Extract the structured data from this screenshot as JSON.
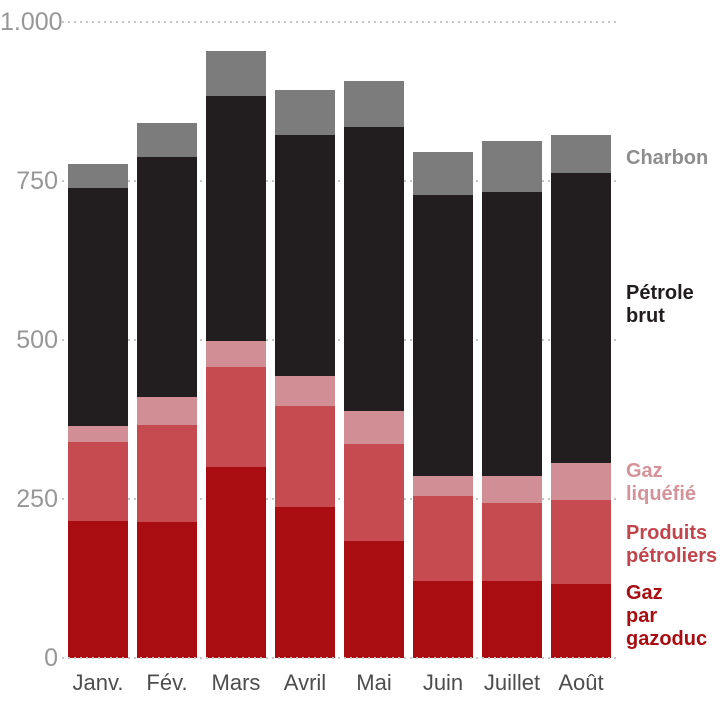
{
  "chart_data": {
    "type": "bar",
    "stacked": true,
    "title": "",
    "xlabel": "",
    "ylabel": "",
    "categories": [
      "Janv.",
      "Fév.",
      "Mars",
      "Avril",
      "Mai",
      "Juin",
      "Juillet",
      "Août"
    ],
    "series": [
      {
        "name": "Gaz par gazoduc",
        "color": "#a90d12",
        "values": [
          215,
          214,
          300,
          237,
          184,
          121,
          121,
          116
        ]
      },
      {
        "name": "Produits pétroliers",
        "color": "#c64b51",
        "values": [
          124,
          152,
          158,
          159,
          152,
          133,
          122,
          132
        ]
      },
      {
        "name": "Gaz liquéfié",
        "color": "#d18e94",
        "values": [
          25,
          45,
          40,
          47,
          52,
          32,
          43,
          58
        ]
      },
      {
        "name": "Pétrole brut",
        "color": "#221e1f",
        "values": [
          375,
          376,
          386,
          380,
          447,
          442,
          447,
          457
        ]
      },
      {
        "name": "Charbon",
        "color": "#7c7c7c",
        "values": [
          38,
          54,
          70,
          70,
          72,
          68,
          80,
          60
        ]
      }
    ],
    "totals": [
      777,
      841,
      954,
      893,
      907,
      796,
      813,
      823
    ],
    "ylim": [
      0,
      1000
    ],
    "yticks": [
      {
        "label": "1.000",
        "value": 1000
      },
      {
        "label": "750",
        "value": 750
      },
      {
        "label": "500",
        "value": 500
      },
      {
        "label": "250",
        "value": 250
      },
      {
        "label": "0",
        "value": 0
      }
    ],
    "grid": "dotted horizontal lines, drawn behind bars (baseline dotted over bars)",
    "legend_position": "right"
  },
  "legend": {
    "items": [
      {
        "label": "Charbon",
        "color": "#8d8d8d"
      },
      {
        "label": "Pétrole\nbrut",
        "color": "#211d1e"
      },
      {
        "label": "Gaz\nliquéfié",
        "color": "#d4939a"
      },
      {
        "label": "Produits\npétroliers",
        "color": "#c2454d"
      },
      {
        "label": "Gaz\npar\ngazoduc",
        "color": "#a90d12"
      }
    ]
  },
  "colors": {
    "background": "#ffffff",
    "gridline": "#c6c6c6",
    "ytick_text": "#979797",
    "xtick_text": "#4d4d4d"
  }
}
